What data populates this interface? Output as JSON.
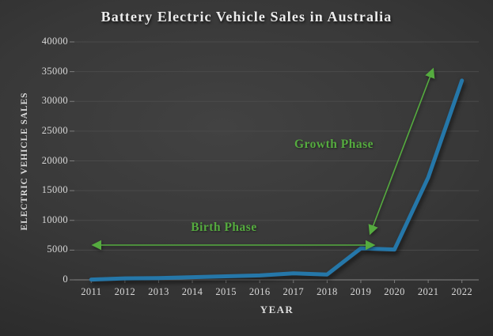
{
  "chart_data": {
    "type": "line",
    "title": "Battery Electric Vehicle Sales in Australia",
    "xlabel": "YEAR",
    "ylabel": "ELECTRIC VEHICLE SALES",
    "categories": [
      "2011",
      "2012",
      "2013",
      "2014",
      "2015",
      "2016",
      "2017",
      "2018",
      "2019",
      "2020",
      "2021",
      "2022"
    ],
    "series": [
      {
        "name": "Battery Electric Vehicle Sales",
        "values": [
          49,
          250,
          300,
          450,
          600,
          750,
          1100,
          900,
          5300,
          5100,
          17200,
          33500
        ]
      }
    ],
    "ylim": [
      0,
      40000
    ],
    "ytick_step": 5000,
    "yticks": [
      0,
      5000,
      10000,
      15000,
      20000,
      25000,
      30000,
      35000,
      40000
    ],
    "grid": true,
    "legend": false,
    "annotations": [
      {
        "label": "Birth Phase",
        "type": "horizontal-double-arrow",
        "x_range": [
          "2011",
          "2019"
        ],
        "color": "#55ab3f"
      },
      {
        "label": "Growth Phase",
        "type": "diagonal-double-arrow",
        "x_range": [
          "2019",
          "2022"
        ],
        "color": "#55ab3f"
      }
    ],
    "colors": {
      "line": "#2577a9",
      "annotation_green": "#55ab3f",
      "background_center": "#424242",
      "background_edge": "#1e1e1e",
      "gridline": "#4a4a4a",
      "axis_line": "#848484",
      "text": "#d9d9d9",
      "title_text": "#ececec"
    }
  }
}
